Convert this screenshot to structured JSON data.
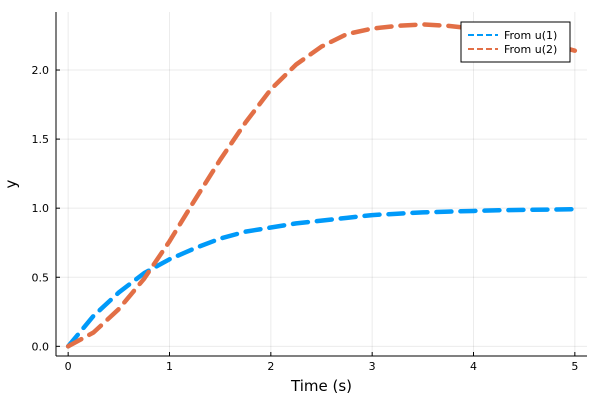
{
  "chart_data": {
    "type": "line",
    "xlabel": "Time (s)",
    "ylabel": "y",
    "xlim": [
      -0.12,
      5.12
    ],
    "ylim": [
      -0.07,
      2.42
    ],
    "x_ticks": [
      {
        "value": 0,
        "label": "0"
      },
      {
        "value": 1,
        "label": "1"
      },
      {
        "value": 2,
        "label": "2"
      },
      {
        "value": 3,
        "label": "3"
      },
      {
        "value": 4,
        "label": "4"
      },
      {
        "value": 5,
        "label": "5"
      }
    ],
    "y_ticks": [
      {
        "value": 0.0,
        "label": "0.0"
      },
      {
        "value": 0.5,
        "label": "0.5"
      },
      {
        "value": 1.0,
        "label": "1.0"
      },
      {
        "value": 1.5,
        "label": "1.5"
      },
      {
        "value": 2.0,
        "label": "2.0"
      }
    ],
    "grid": true,
    "legend_position": "top-right",
    "x": [
      0,
      0.25,
      0.5,
      0.75,
      1.0,
      1.25,
      1.5,
      1.75,
      2.0,
      2.25,
      2.5,
      2.75,
      3.0,
      3.25,
      3.5,
      3.75,
      4.0,
      4.25,
      4.5,
      4.75,
      5.0
    ],
    "series": [
      {
        "name": "From u(1)",
        "color": "#009AF9",
        "style": "dashed",
        "values": [
          0.0,
          0.22,
          0.39,
          0.53,
          0.63,
          0.71,
          0.78,
          0.83,
          0.86,
          0.89,
          0.91,
          0.93,
          0.95,
          0.96,
          0.97,
          0.975,
          0.98,
          0.985,
          0.988,
          0.99,
          0.993
        ]
      },
      {
        "name": "From u(2)",
        "color": "#E26F46",
        "style": "dashed",
        "values": [
          0.0,
          0.1,
          0.27,
          0.49,
          0.76,
          1.06,
          1.35,
          1.62,
          1.86,
          2.04,
          2.17,
          2.26,
          2.3,
          2.32,
          2.33,
          2.32,
          2.3,
          2.27,
          2.23,
          2.19,
          2.14
        ]
      }
    ]
  }
}
